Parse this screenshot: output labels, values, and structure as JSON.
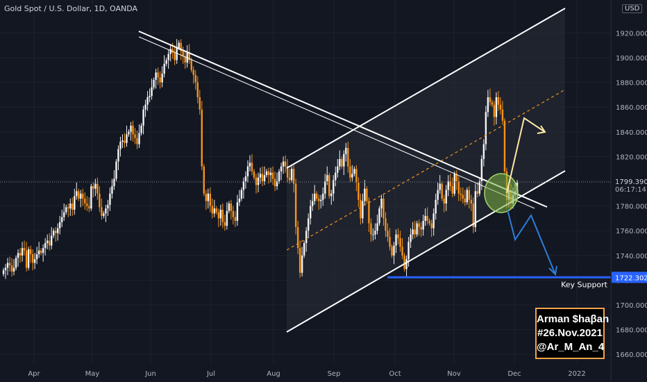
{
  "header": {
    "title": "Gold Spot / U.S. Dollar, 1D, OANDA",
    "currency": "USD"
  },
  "badge": {
    "line1": "Arman $haβan",
    "line2": "#26.Nov.2021",
    "line3": "@Ar_M_An_4"
  },
  "colors": {
    "background": "#131722",
    "up": "#f5f5f5",
    "down": "#f7931a",
    "channel": "#ffffff",
    "midline": "#f7931a",
    "support": "#2962ff",
    "bull_arrow": "#ffe9a8",
    "bear_arrow": "#2f7dd8",
    "highlight": "#7cb342"
  },
  "chart_data": {
    "type": "candlestick",
    "title": "Gold Spot / U.S. Dollar, 1D, OANDA",
    "x_tick_labels": [
      "Apr",
      "May",
      "Jun",
      "Jul",
      "Aug",
      "Sep",
      "Oct",
      "Nov",
      "Dec",
      "2022"
    ],
    "y_tick_labels": [
      "1660.000",
      "1680.000",
      "1700.000",
      "1720.000",
      "1740.000",
      "1760.000",
      "1780.000",
      "1800.000",
      "1820.000",
      "1840.000",
      "1860.000",
      "1880.000",
      "1900.000",
      "1920.000"
    ],
    "ylim": [
      1655,
      1945
    ],
    "current_price": {
      "value": "1799.390",
      "countdown": "06:17:14"
    },
    "key_support": {
      "value": "1722.302",
      "label": "Key Support"
    },
    "closes": [
      1728,
      1730,
      1734,
      1732,
      1727,
      1730,
      1738,
      1742,
      1740,
      1746,
      1744,
      1730,
      1745,
      1741,
      1734,
      1737,
      1741,
      1744,
      1742,
      1746,
      1750,
      1752,
      1748,
      1756,
      1760,
      1758,
      1762,
      1767,
      1771,
      1775,
      1779,
      1778,
      1782,
      1777,
      1788,
      1792,
      1786,
      1790,
      1786,
      1782,
      1780,
      1778,
      1796,
      1794,
      1798,
      1790,
      1779,
      1772,
      1774,
      1778,
      1781,
      1790,
      1796,
      1802,
      1816,
      1826,
      1832,
      1833,
      1831,
      1838,
      1840,
      1845,
      1838,
      1835,
      1830,
      1839,
      1845,
      1858,
      1862,
      1868,
      1869,
      1876,
      1882,
      1888,
      1884,
      1880,
      1887,
      1895,
      1898,
      1903,
      1907,
      1904,
      1898,
      1908,
      1912,
      1905,
      1901,
      1896,
      1904,
      1898,
      1890,
      1886,
      1880,
      1868,
      1858,
      1812,
      1790,
      1784,
      1790,
      1780,
      1774,
      1778,
      1775,
      1770,
      1777,
      1767,
      1764,
      1776,
      1782,
      1776,
      1771,
      1768,
      1783,
      1786,
      1793,
      1800,
      1804,
      1812,
      1815,
      1808,
      1803,
      1797,
      1803,
      1806,
      1800,
      1805,
      1808,
      1805,
      1807,
      1802,
      1796,
      1800,
      1808,
      1812,
      1816,
      1812,
      1803,
      1801,
      1810,
      1798,
      1763,
      1746,
      1726,
      1740,
      1750,
      1760,
      1770,
      1780,
      1784,
      1790,
      1786,
      1784,
      1785,
      1790,
      1800,
      1805,
      1788,
      1790,
      1801,
      1807,
      1812,
      1818,
      1812,
      1822,
      1827,
      1812,
      1803,
      1806,
      1810,
      1799,
      1785,
      1770,
      1784,
      1794,
      1784,
      1766,
      1757,
      1757,
      1760,
      1766,
      1778,
      1786,
      1770,
      1760,
      1755,
      1747,
      1740,
      1748,
      1757,
      1754,
      1747,
      1740,
      1729,
      1737,
      1751,
      1757,
      1761,
      1757,
      1766,
      1763,
      1761,
      1768,
      1772,
      1768,
      1766,
      1762,
      1774,
      1785,
      1793,
      1798,
      1786,
      1782,
      1793,
      1800,
      1796,
      1790,
      1806,
      1800,
      1790,
      1789,
      1786,
      1783,
      1793,
      1785,
      1782,
      1763,
      1792,
      1790,
      1800,
      1818,
      1830,
      1856,
      1868,
      1864,
      1862,
      1852,
      1868,
      1862,
      1858,
      1849,
      1808,
      1785,
      1793,
      1782,
      1789,
      1792,
      1799
    ],
    "bullish_target": {
      "from": [
        1778,
        "Nov 26"
      ],
      "to": [
        1848,
        "Dec 5"
      ]
    },
    "bearish_target": {
      "from": [
        1778,
        "Nov 26"
      ],
      "to": [
        1724,
        "Dec 8"
      ]
    }
  }
}
